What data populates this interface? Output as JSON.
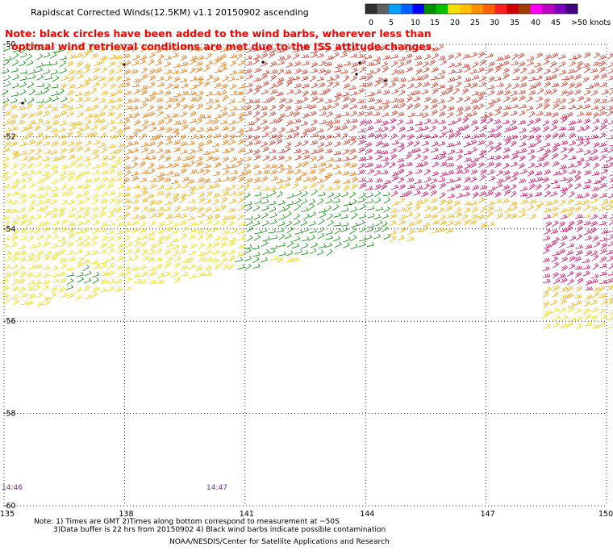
{
  "title": "Rapidscat Corrected Winds(12.5KM) v1.1 20150902 ascending",
  "note_lines": [
    "Note: black circles have been added to the wind barbs, wherever less than",
    "optimal wind retrieval conditions are met due to the ISS attitude changes."
  ],
  "legend": {
    "ticks": [
      "0",
      "5",
      "10",
      "15",
      "20",
      "25",
      "30",
      "35",
      "40",
      "45",
      ">50 knots"
    ],
    "colors": [
      "#303030",
      "#606060",
      "#00a0ff",
      "#0060ff",
      "#0000ff",
      "#009000",
      "#00c000",
      "#f0e000",
      "#ffc000",
      "#ff9000",
      "#ff6000",
      "#ff2020",
      "#d00000",
      "#a04000",
      "#ff00ff",
      "#c000c0",
      "#8000c0",
      "#400080"
    ]
  },
  "lat_labels": [
    "-50",
    "-52",
    "-54",
    "-56",
    "-58",
    "-60"
  ],
  "lon_labels": [
    "135",
    "138",
    "141",
    "144",
    "147",
    "150"
  ],
  "time_labels": [
    "14:46",
    "14:47"
  ],
  "footer_lines": [
    "Note: 1) Times are GMT 2)Times along bottom correspond to measurement at ~50S",
    "3)Data buffer is 22 hrs from 20150902 4) Black wind barbs indicate possible contamination",
    "NOAA/NESDIS/Center for Satellite Applications and Research"
  ],
  "colors": {
    "note": "#ff0000",
    "time_label": "#7030a0",
    "speed_15_20": "#009000",
    "speed_20_25": "#f0e000",
    "speed_25_30": "#ffb000",
    "speed_30_35": "#ff7000",
    "speed_35_40": "#e03020",
    "speed_40_45": "#e00060"
  }
}
